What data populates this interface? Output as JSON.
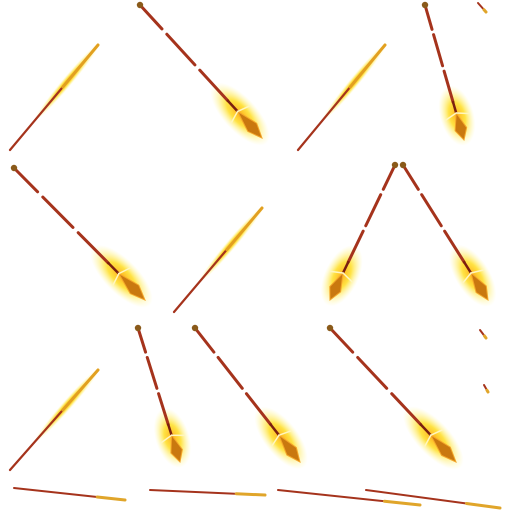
{
  "sprite_sheet": {
    "background": "#ffffff",
    "frame_count": 18,
    "colors": {
      "shaft_dark": "#7a1f0f",
      "shaft": "#a5331c",
      "glow_outer": "#fff27a",
      "glow_inner": "#ffd21a",
      "blade": "#c9780f",
      "blade_light": "#f3a52a",
      "ornament": "#8a5a1a"
    }
  }
}
